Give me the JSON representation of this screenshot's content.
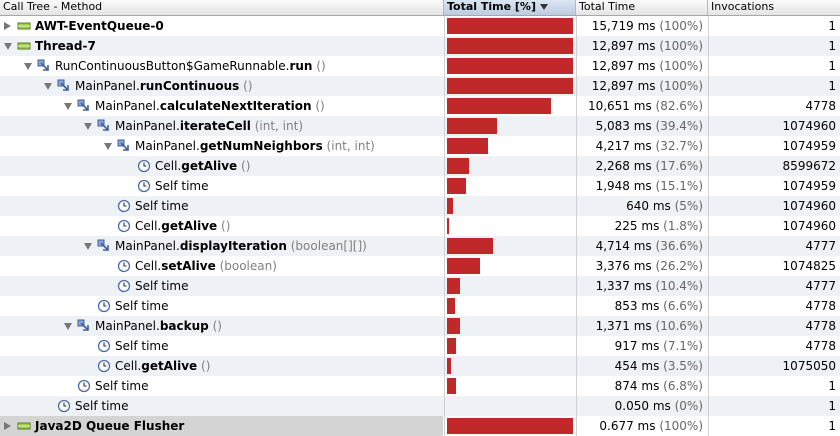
{
  "columns": {
    "method": "Call Tree - Method",
    "total_pct": "Total Time [%]",
    "total_time": "Total Time",
    "invocations": "Invocations"
  },
  "colors": {
    "bar": "#c0282a",
    "stripe": "#eef1f6"
  },
  "rows": [
    {
      "depth": 0,
      "toggle": "collapsed",
      "icon": "thread-icon",
      "cls": "",
      "method": "AWT-EventQueue-0",
      "sig": "",
      "time": "15,719 ms",
      "pct": "(100%)",
      "inv": "1",
      "fill": 1.0
    },
    {
      "depth": 0,
      "toggle": "expanded",
      "icon": "thread-icon",
      "cls": "",
      "method": "Thread-7",
      "sig": "",
      "time": "12,897 ms",
      "pct": "(100%)",
      "inv": "1",
      "fill": 1.0
    },
    {
      "depth": 1,
      "toggle": "expanded",
      "icon": "method-icon",
      "cls": "RunContinuousButton$GameRunnable.",
      "method": "run",
      "sig": " ()",
      "time": "12,897 ms",
      "pct": "(100%)",
      "inv": "1",
      "fill": 1.0
    },
    {
      "depth": 2,
      "toggle": "expanded",
      "icon": "method-icon",
      "cls": "MainPanel.",
      "method": "runContinuous",
      "sig": " ()",
      "time": "12,897 ms",
      "pct": "(100%)",
      "inv": "1",
      "fill": 1.0
    },
    {
      "depth": 3,
      "toggle": "expanded",
      "icon": "method-icon",
      "cls": "MainPanel.",
      "method": "calculateNextIteration",
      "sig": " ()",
      "time": "10,651 ms",
      "pct": "(82.6%)",
      "inv": "4778",
      "fill": 0.826
    },
    {
      "depth": 4,
      "toggle": "expanded",
      "icon": "method-icon",
      "cls": "MainPanel.",
      "method": "iterateCell",
      "sig": " (int, int)",
      "time": "5,083 ms",
      "pct": "(39.4%)",
      "inv": "1074960",
      "fill": 0.394
    },
    {
      "depth": 5,
      "toggle": "expanded",
      "icon": "method-icon",
      "cls": "MainPanel.",
      "method": "getNumNeighbors",
      "sig": " (int, int)",
      "time": "4,217 ms",
      "pct": "(32.7%)",
      "inv": "1074959",
      "fill": 0.327
    },
    {
      "depth": 6,
      "toggle": "",
      "icon": "clock-icon",
      "cls": "Cell.",
      "method": "getAlive",
      "sig": " ()",
      "time": "2,268 ms",
      "pct": "(17.6%)",
      "inv": "8599672",
      "fill": 0.176
    },
    {
      "depth": 6,
      "toggle": "",
      "icon": "clock-icon",
      "cls": "Self time",
      "method": "",
      "sig": "",
      "time": "1,948 ms",
      "pct": "(15.1%)",
      "inv": "1074959",
      "fill": 0.151
    },
    {
      "depth": 5,
      "toggle": "",
      "icon": "clock-icon",
      "cls": "Self time",
      "method": "",
      "sig": "",
      "time": "640 ms",
      "pct": "(5%)",
      "inv": "1074960",
      "fill": 0.05
    },
    {
      "depth": 5,
      "toggle": "",
      "icon": "clock-icon",
      "cls": "Cell.",
      "method": "getAlive",
      "sig": " ()",
      "time": "225 ms",
      "pct": "(1.8%)",
      "inv": "1074960",
      "fill": 0.018
    },
    {
      "depth": 4,
      "toggle": "expanded",
      "icon": "method-icon",
      "cls": "MainPanel.",
      "method": "displayIteration",
      "sig": " (boolean[][])",
      "time": "4,714 ms",
      "pct": "(36.6%)",
      "inv": "4777",
      "fill": 0.366
    },
    {
      "depth": 5,
      "toggle": "",
      "icon": "clock-icon",
      "cls": "Cell.",
      "method": "setAlive",
      "sig": " (boolean)",
      "time": "3,376 ms",
      "pct": "(26.2%)",
      "inv": "1074825",
      "fill": 0.262
    },
    {
      "depth": 5,
      "toggle": "",
      "icon": "clock-icon",
      "cls": "Self time",
      "method": "",
      "sig": "",
      "time": "1,337 ms",
      "pct": "(10.4%)",
      "inv": "4777",
      "fill": 0.104
    },
    {
      "depth": 4,
      "toggle": "",
      "icon": "clock-icon",
      "cls": "Self time",
      "method": "",
      "sig": "",
      "time": "853 ms",
      "pct": "(6.6%)",
      "inv": "4778",
      "fill": 0.066
    },
    {
      "depth": 3,
      "toggle": "expanded",
      "icon": "method-icon",
      "cls": "MainPanel.",
      "method": "backup",
      "sig": " ()",
      "time": "1,371 ms",
      "pct": "(10.6%)",
      "inv": "4778",
      "fill": 0.106
    },
    {
      "depth": 4,
      "toggle": "",
      "icon": "clock-icon",
      "cls": "Self time",
      "method": "",
      "sig": "",
      "time": "917 ms",
      "pct": "(7.1%)",
      "inv": "4778",
      "fill": 0.071
    },
    {
      "depth": 4,
      "toggle": "",
      "icon": "clock-icon",
      "cls": "Cell.",
      "method": "getAlive",
      "sig": " ()",
      "time": "454 ms",
      "pct": "(3.5%)",
      "inv": "1075050",
      "fill": 0.035
    },
    {
      "depth": 3,
      "toggle": "",
      "icon": "clock-icon",
      "cls": "Self time",
      "method": "",
      "sig": "",
      "time": "874 ms",
      "pct": "(6.8%)",
      "inv": "1",
      "fill": 0.068
    },
    {
      "depth": 2,
      "toggle": "",
      "icon": "clock-icon",
      "cls": "Self time",
      "method": "",
      "sig": "",
      "time": "0.050 ms",
      "pct": "(0%)",
      "inv": "1",
      "fill": 0.0
    },
    {
      "depth": 0,
      "toggle": "collapsed",
      "icon": "thread-icon",
      "cls": "",
      "method": "Java2D Queue Flusher",
      "sig": "",
      "time": "0.677 ms",
      "pct": "(100%)",
      "inv": "1",
      "fill": 1.0,
      "selected": true
    }
  ]
}
